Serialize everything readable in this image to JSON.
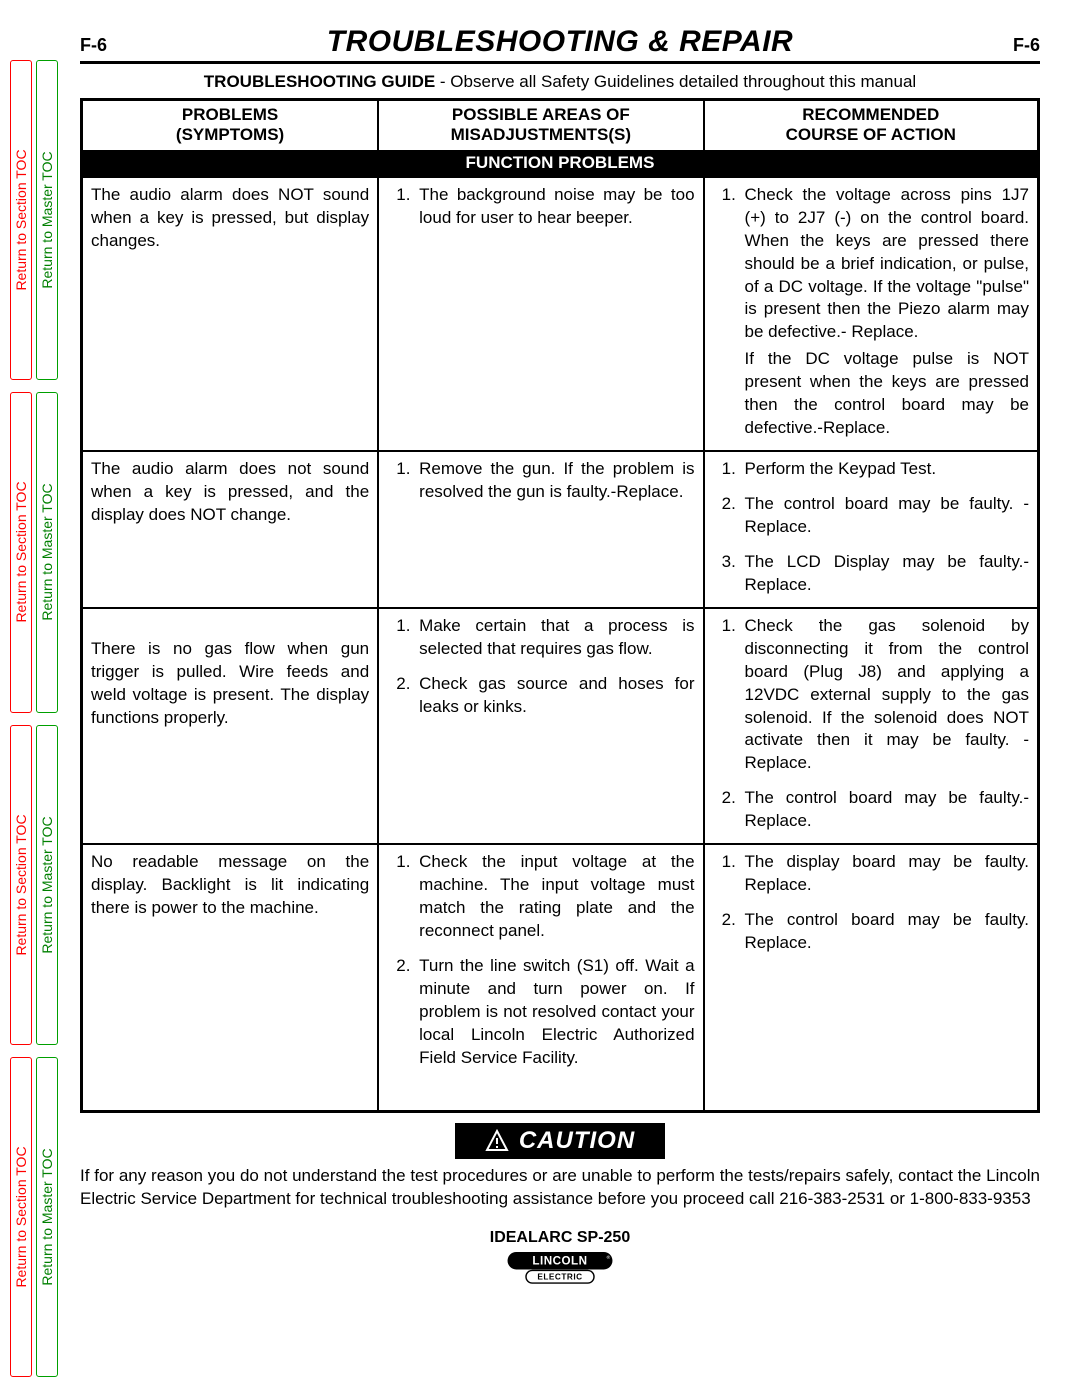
{
  "page_number": "F-6",
  "title": "TROUBLESHOOTING & REPAIR",
  "guide_prefix": "TROUBLESHOOTING GUIDE",
  "guide_rest": " - Observe all Safety Guidelines detailed throughout this manual",
  "side_tabs": {
    "red_label": "Return to Section TOC",
    "green_label": "Return to Master TOC",
    "red_color": "#ff0000",
    "green_color": "#008000",
    "repeat": 4
  },
  "columns": {
    "problems": "PROBLEMS (SYMPTOMS)",
    "misadjust": "POSSIBLE AREAS OF MISADJUSTMENTS(S)",
    "action": "RECOMMENDED COURSE OF ACTION"
  },
  "section_header": "FUNCTION PROBLEMS",
  "rows": [
    {
      "problem": "The audio alarm does NOT sound when a key is pressed, but display changes.",
      "misadjust": [
        "The background noise may be too loud for user to hear beeper."
      ],
      "action": [
        "Check the voltage across pins 1J7 (+) to 2J7 (-) on the control board. When the keys are pressed there should be a brief indication, or pulse, of a DC voltage. If the voltage \"pulse\" is present then the Piezo alarm may be defective.- Replace."
      ],
      "action_extra": "If the DC voltage pulse is NOT present when the keys are pressed then the control board may be defective.-Replace."
    },
    {
      "problem": "The audio alarm does not sound when a key is pressed, and the display does NOT change.",
      "misadjust": [
        "Remove the gun.  If the problem is resolved the gun is faulty.-Replace."
      ],
      "action": [
        "Perform the Keypad Test.",
        "The control board may be faulty. - Replace.",
        "The LCD Display may be faulty.-Replace."
      ]
    },
    {
      "problem": "There is no gas flow when gun trigger is pulled.  Wire feeds and weld voltage is present.  The display functions properly.",
      "problem_leading_break": true,
      "misadjust": [
        "Make certain that a process is selected that requires gas flow.",
        "Check gas source and hoses for leaks or kinks."
      ],
      "action": [
        "Check the gas solenoid by disconnecting it from the control board (Plug J8) and applying a 12VDC external supply to the gas solenoid.  If the solenoid does NOT  activate then it may be faulty. - Replace.",
        "The control board may be faulty.-Replace."
      ]
    },
    {
      "problem": "No readable message on the display.  Backlight is lit indicating there is power to the machine.",
      "misadjust": [
        "Check the input voltage at the machine.  The input voltage must match the rating plate and the reconnect panel.",
        "Turn the line switch (S1) off. Wait a minute and turn power on.  If problem is not resolved contact your local Lincoln Electric Authorized Field Service Facility."
      ],
      "action": [
        "The display board may be faulty. Replace.",
        "The control board may be faulty. Replace."
      ]
    }
  ],
  "caution_label": "CAUTION",
  "caution_text": "If for any reason you do not understand the test procedures or are unable to perform the tests/repairs safely, contact the Lincoln Electric Service Department for technical troubleshooting assistance before you proceed call 216-383-2531 or 1-800-833-9353",
  "model": "IDEALARC SP-250",
  "logo_top": "LINCOLN",
  "logo_bottom": "ELECTRIC",
  "colors": {
    "text": "#000000",
    "section_bg": "#000000",
    "section_fg": "#ffffff",
    "border": "#000000"
  }
}
